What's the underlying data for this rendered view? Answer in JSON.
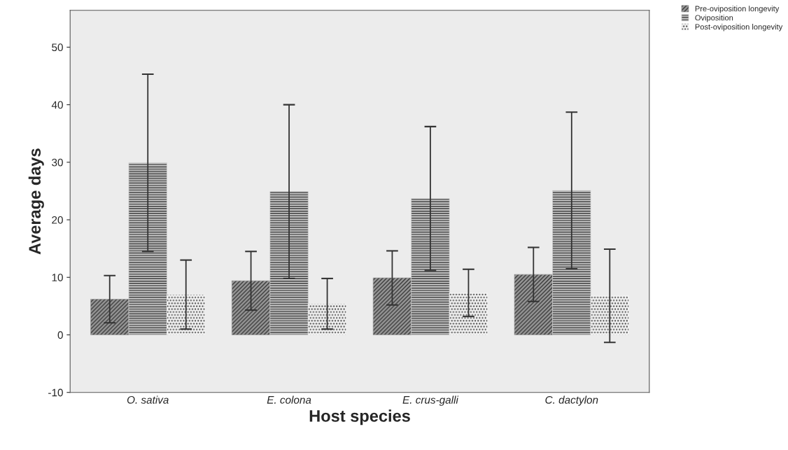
{
  "chart_data": {
    "type": "bar",
    "xlabel": "Host species",
    "ylabel": "Average days",
    "categories": [
      "O. sativa",
      "E. colona",
      "E. crus-galli",
      "C. dactylon"
    ],
    "series": [
      {
        "name": "Pre-oviposition longevity",
        "color": "#9a9a9a",
        "values": [
          6.2,
          9.4,
          9.9,
          10.5
        ],
        "errors": [
          4.1,
          5.1,
          4.7,
          4.7
        ]
      },
      {
        "name": "Oviposition",
        "color": "#d0d0d0",
        "values": [
          29.9,
          24.9,
          23.7,
          25.1
        ],
        "errors": [
          15.4,
          15.1,
          12.5,
          13.6
        ]
      },
      {
        "name": "Post-oviposition longevity",
        "color": "#f4f4f4",
        "values": [
          7.0,
          5.4,
          7.3,
          6.8
        ],
        "errors": [
          6.0,
          4.4,
          4.1,
          8.1
        ]
      }
    ],
    "ylim": [
      -10,
      56.4
    ],
    "yticks": [
      -10,
      0,
      10,
      20,
      30,
      40,
      50
    ],
    "grid": false,
    "legend": "top right"
  }
}
